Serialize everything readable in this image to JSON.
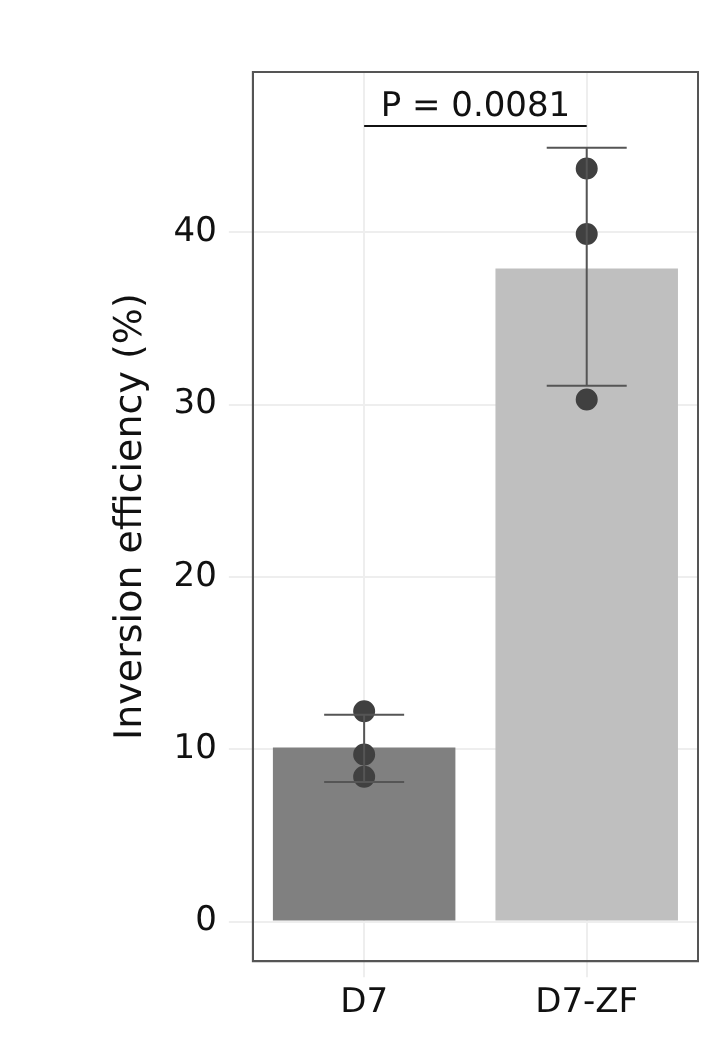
{
  "chart_data": {
    "type": "bar",
    "ylabel": "Inversion efficiency (%)",
    "categories": [
      "D7",
      "D7-ZF"
    ],
    "series": [
      {
        "colors": [
          "#808080",
          "#bfbfbf"
        ],
        "values": [
          10.1,
          37.9
        ],
        "errors": [
          [
            8.1,
            12.0
          ],
          [
            31.1,
            44.9
          ]
        ]
      },
      {
        "type": "scatter",
        "color": "#404040",
        "x": [
          "D7",
          "D7",
          "D7",
          "D7-ZF",
          "D7-ZF",
          "D7-ZF"
        ],
        "values": [
          12.2,
          8.4,
          9.7,
          43.7,
          39.9,
          30.3
        ]
      }
    ],
    "ylim": [
      -2.3,
      49.3
    ],
    "yticks": [
      0,
      10,
      20,
      30,
      40
    ],
    "grid": true,
    "legend": false,
    "marker": "circle",
    "annotations": [
      "P = 0.0081"
    ]
  }
}
